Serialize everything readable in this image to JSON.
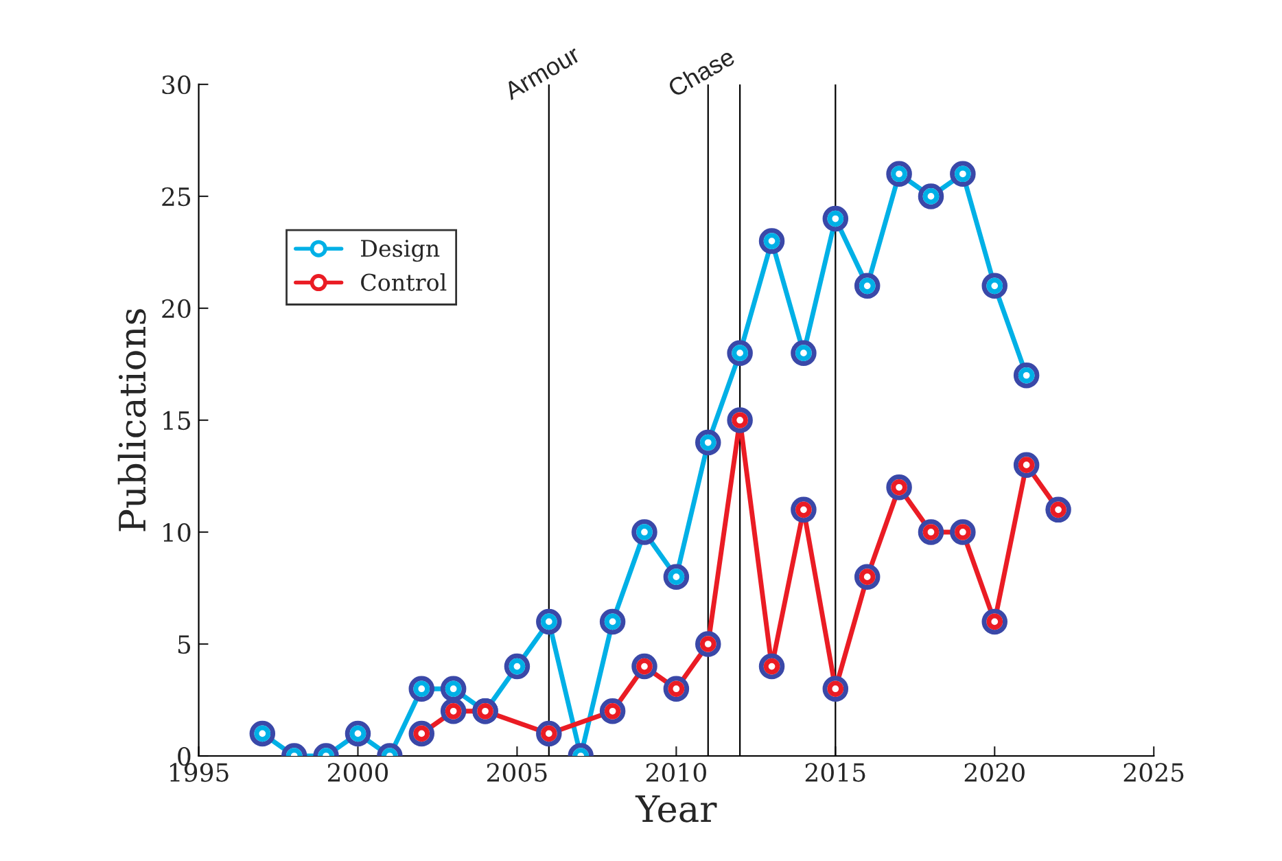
{
  "chart_data": {
    "type": "line",
    "xlabel": "Year",
    "ylabel": "Publications",
    "xlim": [
      1995,
      2025
    ],
    "xticks": [
      1995,
      2000,
      2005,
      2010,
      2015,
      2020,
      2025
    ],
    "ylim": [
      0,
      30
    ],
    "yticks": [
      0,
      5,
      10,
      15,
      20,
      25,
      30
    ],
    "grid": false,
    "legend": "top left",
    "marker": "circle",
    "line_style": "solid",
    "series": [
      {
        "name": "Design",
        "color": "#00b0e6",
        "x": [
          1997,
          1998,
          1999,
          2000,
          2001,
          2002,
          2003,
          2004,
          2005,
          2006,
          2007,
          2008,
          2009,
          2010,
          2011,
          2012,
          2013,
          2014,
          2015,
          2016,
          2017,
          2018,
          2019,
          2020,
          2021
        ],
        "values": [
          1,
          0,
          0,
          1,
          0,
          3,
          3,
          2,
          4,
          6,
          0,
          6,
          10,
          8,
          14,
          18,
          23,
          18,
          24,
          21,
          26,
          25,
          26,
          21,
          17
        ]
      },
      {
        "name": "Control",
        "color": "#ea1c24",
        "x": [
          2002,
          2003,
          2004,
          2006,
          2008,
          2009,
          2010,
          2011,
          2012,
          2013,
          2014,
          2015,
          2016,
          2017,
          2018,
          2019,
          2020,
          2021,
          2022
        ],
        "values": [
          1,
          2,
          2,
          1,
          2,
          4,
          3,
          5,
          15,
          4,
          11,
          3,
          8,
          12,
          10,
          10,
          6,
          13,
          11
        ]
      }
    ],
    "ref_lines": [
      {
        "axis": "x",
        "value": 2006,
        "label": "Armour",
        "color": "#000000"
      },
      {
        "axis": "x",
        "value": 2011,
        "label": "Chase",
        "color": "#000000"
      },
      {
        "axis": "x",
        "value": 2012,
        "color": "#000000"
      },
      {
        "axis": "x",
        "value": 2015,
        "color": "#000000"
      }
    ]
  }
}
